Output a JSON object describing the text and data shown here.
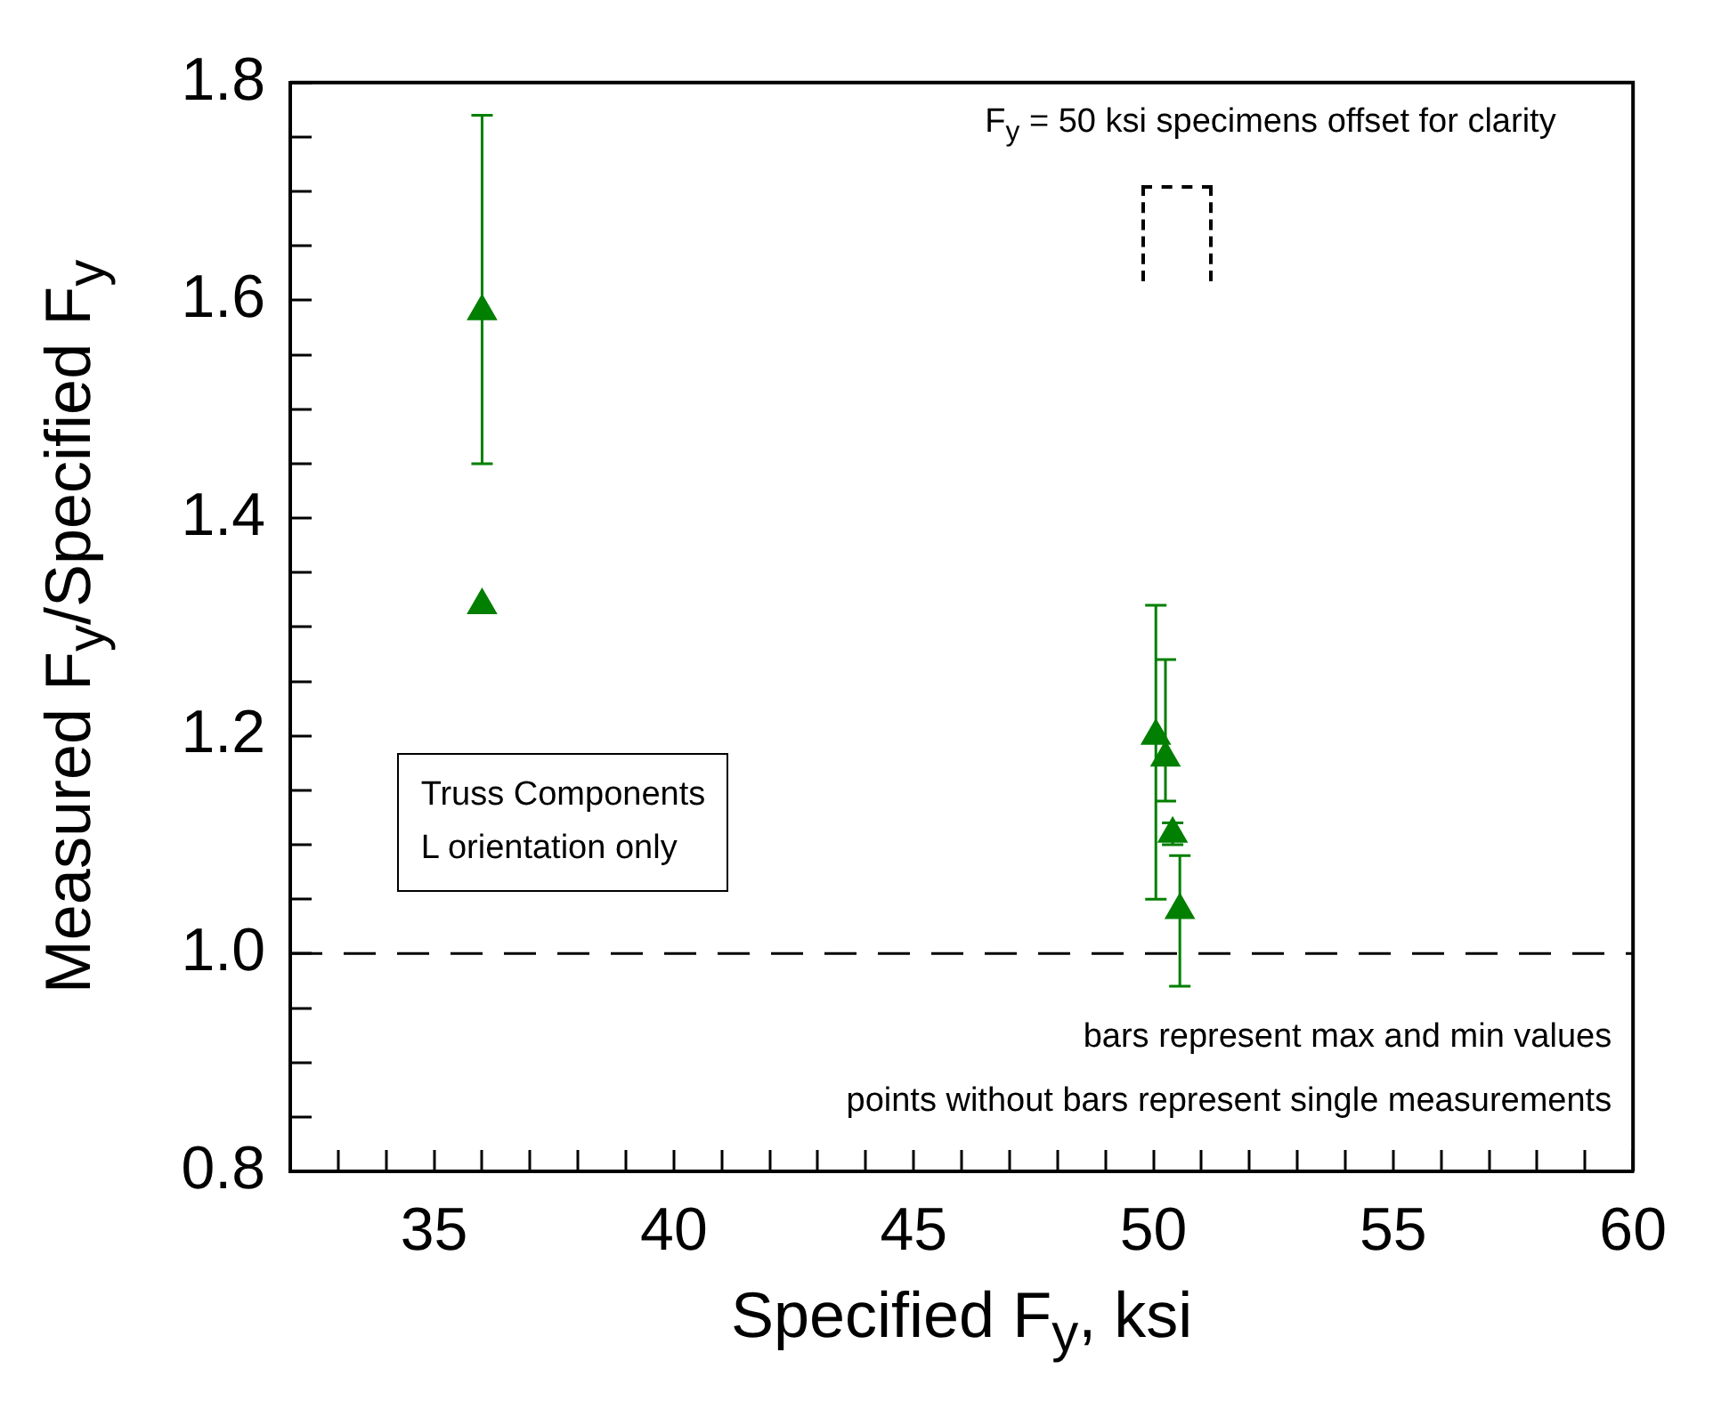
{
  "chart_data": {
    "type": "scatter",
    "xlabel": "Specified F$_{y}$, ksi",
    "ylabel": "Measured F$_{y}$/Specified F$_{y}$",
    "xlim": [
      32,
      60
    ],
    "ylim": [
      0.8,
      1.8
    ],
    "marker": "triangle",
    "xticks": [
      {
        "value": 33,
        "label": null
      },
      {
        "value": 34,
        "label": null
      },
      35,
      {
        "value": 36,
        "label": null
      },
      {
        "value": 37,
        "label": null
      },
      {
        "value": 38,
        "label": null
      },
      {
        "value": 39,
        "label": null
      },
      40,
      {
        "value": 41,
        "label": null
      },
      {
        "value": 42,
        "label": null
      },
      {
        "value": 43,
        "label": null
      },
      {
        "value": 44,
        "label": null
      },
      45,
      {
        "value": 46,
        "label": null
      },
      {
        "value": 47,
        "label": null
      },
      {
        "value": 48,
        "label": null
      },
      {
        "value": 49,
        "label": null
      },
      50,
      {
        "value": 51,
        "label": null
      },
      {
        "value": 52,
        "label": null
      },
      {
        "value": 53,
        "label": null
      },
      {
        "value": 54,
        "label": null
      },
      55,
      {
        "value": 56,
        "label": null
      },
      {
        "value": 57,
        "label": null
      },
      {
        "value": 58,
        "label": null
      },
      {
        "value": 59,
        "label": null
      },
      60
    ],
    "yticks": [
      0.8,
      {
        "value": 0.85,
        "label": null
      },
      {
        "value": 0.9,
        "label": null
      },
      {
        "value": 0.95,
        "label": null
      },
      {
        "value": 1,
        "label": "1.0"
      },
      {
        "value": 1.05,
        "label": null
      },
      {
        "value": 1.1,
        "label": null
      },
      {
        "value": 1.15,
        "label": null
      },
      1.2,
      {
        "value": 1.25,
        "label": null
      },
      {
        "value": 1.3,
        "label": null
      },
      {
        "value": 1.35,
        "label": null
      },
      1.4,
      {
        "value": 1.45,
        "label": null
      },
      {
        "value": 1.5,
        "label": null
      },
      {
        "value": 1.55,
        "label": null
      },
      1.6,
      {
        "value": 1.65,
        "label": null
      },
      {
        "value": 1.7,
        "label": null
      },
      {
        "value": 1.75,
        "label": null
      },
      1.8
    ],
    "series": [
      {
        "color": "#007f00",
        "x": [
          36,
          36,
          50.05,
          50.25,
          50.4,
          50.55
        ],
        "values": [
          1.59,
          1.32,
          1.2,
          1.18,
          1.11,
          1.04
        ],
        "errors": [
          [
            1.45,
            1.77
          ],
          null,
          [
            1.05,
            1.32
          ],
          [
            1.14,
            1.27
          ],
          [
            1.1,
            1.12
          ],
          [
            0.97,
            1.09
          ]
        ]
      }
    ],
    "ref_lines": [
      {
        "axis": "y",
        "value": 1.0,
        "line_style": "dashed",
        "color": "#000000"
      }
    ],
    "annotations": [
      "F$_{y}$ = 50 ksi specimens offset for clarity",
      "Truss Components",
      "L orientation only",
      "bars represent max and min values",
      "points without bars represent single measurements"
    ]
  }
}
